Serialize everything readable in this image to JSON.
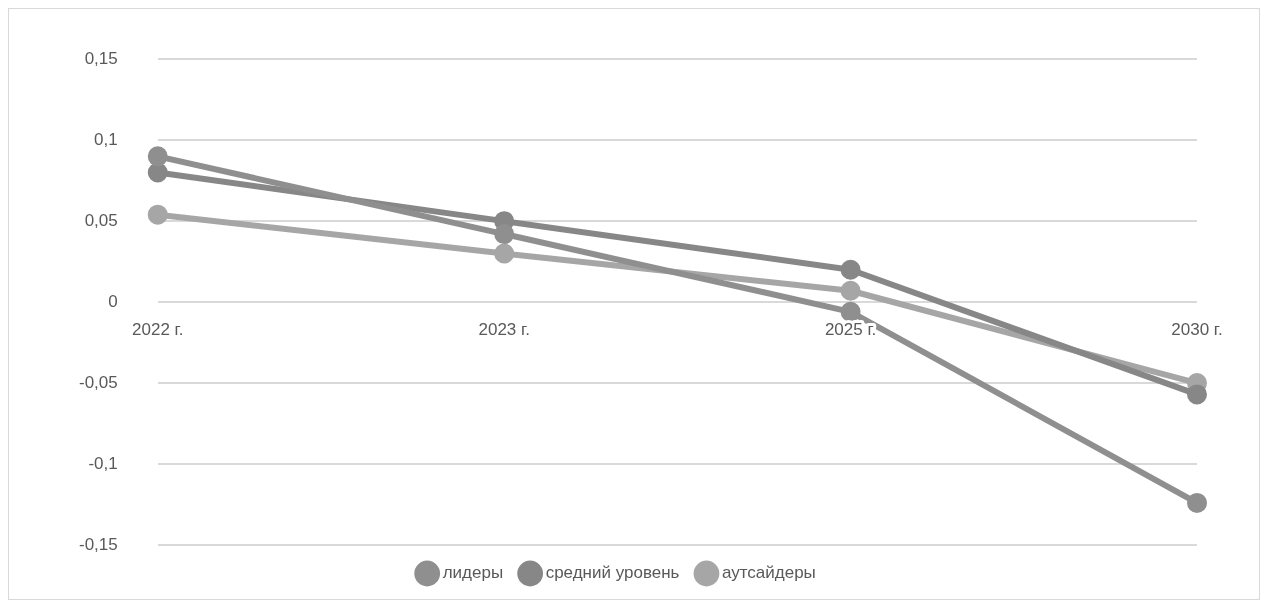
{
  "chart_data": {
    "type": "line",
    "categories": [
      "2022 г.",
      "2023 г.",
      "2025 г.",
      "2030 г."
    ],
    "series": [
      {
        "name": "лидеры",
        "color": "#8f8f8f",
        "values": [
          0.09,
          0.042,
          -0.006,
          -0.124
        ]
      },
      {
        "name": "средний уровень",
        "color": "#878787",
        "values": [
          0.08,
          0.05,
          0.02,
          -0.057
        ]
      },
      {
        "name": "аутсайдеры",
        "color": "#a6a6a6",
        "values": [
          0.054,
          0.03,
          0.007,
          -0.05
        ]
      }
    ],
    "ylim": [
      -0.15,
      0.15
    ],
    "yticks": [
      {
        "value": -0.15,
        "label": "-0,15"
      },
      {
        "value": -0.1,
        "label": "-0,1"
      },
      {
        "value": -0.05,
        "label": "-0,05"
      },
      {
        "value": 0,
        "label": "0"
      },
      {
        "value": 0.05,
        "label": "0,05"
      },
      {
        "value": 0.1,
        "label": "0,1"
      },
      {
        "value": 0.15,
        "label": "0,15"
      }
    ],
    "grid": "y",
    "legend": "bottom",
    "marker": "circle",
    "line_style": "solid"
  }
}
